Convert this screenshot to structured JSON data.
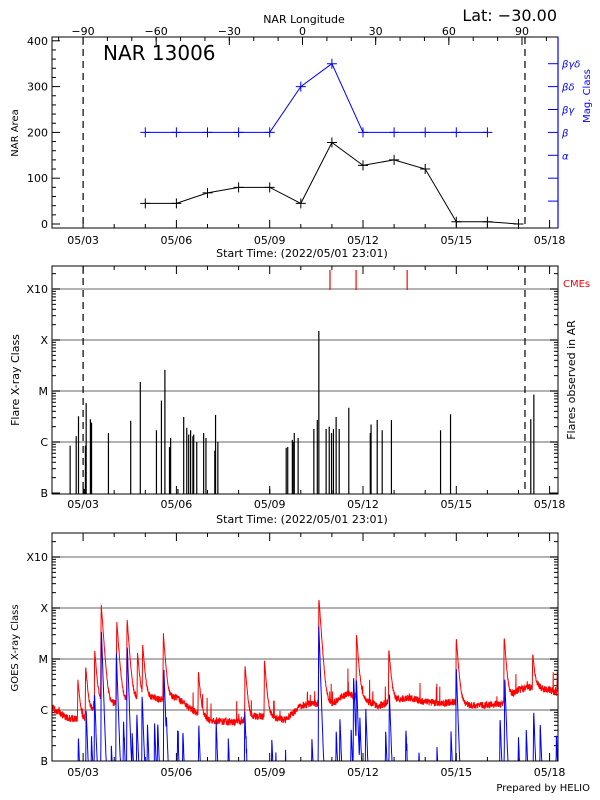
{
  "chart_data": [
    {
      "type": "line",
      "title": "NAR 13006",
      "annotation": "Lat: −30.00",
      "x2label": "NAR Longitude",
      "x2ticks": [
        "−90",
        "−60",
        "−30",
        "0",
        "30",
        "60",
        "90"
      ],
      "x2tick_values": [
        -90,
        -60,
        -30,
        0,
        30,
        60,
        90
      ],
      "xlabel": "Start Time: (2022/05/01 23:01)",
      "xticks": [
        "05/03",
        "05/06",
        "05/09",
        "05/12",
        "05/15",
        "05/18"
      ],
      "xlim": [
        "05/02 00:00",
        "05/18 06:00"
      ],
      "ylabel": "NAR Area",
      "ylim": [
        0,
        400
      ],
      "yticks": [
        "0",
        "100",
        "200",
        "300",
        "400"
      ],
      "y2label": "Mag. Class",
      "y2ticks": [
        "α",
        "β",
        "βγ",
        "βδ",
        "βγδ"
      ],
      "vlines": [
        "05/03 00:00",
        "05/17 05:00"
      ],
      "series": [
        {
          "key": "area",
          "color": "#000000",
          "x": [
            "05/05",
            "05/06",
            "05/07",
            "05/08",
            "05/09",
            "05/10",
            "05/11",
            "05/12",
            "05/13",
            "05/14",
            "05/15",
            "05/16",
            "05/17"
          ],
          "values": [
            45,
            45,
            68,
            80,
            80,
            45,
            178,
            128,
            140,
            120,
            5,
            5,
            0
          ]
        },
        {
          "key": "mag_class",
          "color": "#0000ff",
          "x": [
            "05/05",
            "05/06",
            "05/07",
            "05/08",
            "05/09",
            "05/10",
            "05/11",
            "05/12",
            "05/13",
            "05/14",
            "05/15",
            "05/16"
          ],
          "values": [
            "β",
            "β",
            "β",
            "β",
            "β",
            "βδ",
            "βγδ",
            "β",
            "β",
            "β",
            "β",
            "β"
          ]
        }
      ]
    },
    {
      "type": "bar",
      "xlabel": "Start Time: (2022/05/01 23:01)",
      "xticks": [
        "05/03",
        "05/06",
        "05/09",
        "05/12",
        "05/15",
        "05/18"
      ],
      "xlim": [
        "05/02 00:00",
        "05/18 06:00"
      ],
      "ylabel": "Flare X-ray Class",
      "y2label": "Flares observed in AR",
      "yscale": "log",
      "yticks": [
        "B",
        "C",
        "M",
        "X",
        "X10"
      ],
      "grid": true,
      "legend": "CMEs",
      "cme_color": "#ff0000",
      "cmes": [
        "05/10 22:31",
        "05/11 18:40",
        "05/13 10:04"
      ],
      "vlines": [
        "05/03 00:00",
        "05/17 05:00"
      ],
      "flares": [
        [
          "05/02 14:00",
          "B8.5"
        ],
        [
          "05/02 18:40",
          "C1.3"
        ],
        [
          "05/02 20:27",
          "C3.2"
        ],
        [
          "05/03 00:18",
          "B1.2"
        ],
        [
          "05/03 01:11",
          "B1.2"
        ],
        [
          "05/03 01:47",
          "B8.5"
        ],
        [
          "05/03 02:22",
          "C5.8"
        ],
        [
          "05/03 05:38",
          "C2.8"
        ],
        [
          "05/03 06:31",
          "C2.4"
        ],
        [
          "05/03 19:33",
          "C1.5"
        ],
        [
          "05/04 12:44",
          "C2.6"
        ],
        [
          "05/04 20:09",
          "M1.5"
        ],
        [
          "05/05 08:36",
          "C1.7"
        ],
        [
          "05/05 12:27",
          "C6.5"
        ],
        [
          "05/05 15:07",
          "M2.6"
        ],
        [
          "05/05 18:40",
          "B8.0"
        ],
        [
          "05/05 19:33",
          "C1.2"
        ],
        [
          "05/06 01:11",
          "B1.2"
        ],
        [
          "05/06 05:38",
          "C3.1"
        ],
        [
          "05/06 08:00",
          "C1.9"
        ],
        [
          "05/06 09:29",
          "C1.4"
        ],
        [
          "05/06 10:58",
          "C1.7"
        ],
        [
          "05/06 12:44",
          "C1.3"
        ],
        [
          "05/06 13:20",
          "C1.4"
        ],
        [
          "05/06 15:42",
          "C1.0"
        ],
        [
          "05/06 21:02",
          "C1.5"
        ],
        [
          "05/06 22:49",
          "C1.2"
        ],
        [
          "05/07 05:38",
          "B6.8"
        ],
        [
          "05/07 06:13",
          "C3.4"
        ],
        [
          "05/07 08:00",
          "C1.0"
        ],
        [
          "05/09 00:00",
          "B1.2"
        ],
        [
          "05/09 12:44",
          "B7.7"
        ],
        [
          "05/09 13:55",
          "B8.0"
        ],
        [
          "05/09 17:29",
          "C1.1"
        ],
        [
          "05/09 18:04",
          "C1.0"
        ],
        [
          "05/09 18:58",
          "C1.5"
        ],
        [
          "05/09 21:56",
          "C1.2"
        ],
        [
          "05/10 10:04",
          "C1.8"
        ],
        [
          "05/10 12:44",
          "C2.7"
        ],
        [
          "05/10 13:55",
          "X1.5"
        ],
        [
          "05/10 19:33",
          "C1.8"
        ],
        [
          "05/10 21:56",
          "C2.0"
        ],
        [
          "05/10 23:43",
          "C1.5"
        ],
        [
          "05/11 01:11",
          "C1.8"
        ],
        [
          "05/11 03:16",
          "C3.1"
        ],
        [
          "05/11 05:38",
          "C1.8"
        ],
        [
          "05/11 13:02",
          "C4.7"
        ],
        [
          "05/12 05:38",
          "C1.5"
        ],
        [
          "05/12 06:13",
          "C2.2"
        ],
        [
          "05/12 10:58",
          "C2.7"
        ],
        [
          "05/12 14:49",
          "C1.7"
        ],
        [
          "05/12 21:56",
          "C2.7"
        ],
        [
          "05/14 11:51",
          "C1.7"
        ],
        [
          "05/14 19:33",
          "C3.5"
        ],
        [
          "05/17 09:29",
          "C2.8"
        ],
        [
          "05/17 11:51",
          "C8.5"
        ]
      ]
    },
    {
      "type": "line",
      "xticks": [
        "05/03",
        "05/06",
        "05/09",
        "05/12",
        "05/15",
        "05/18"
      ],
      "xlim": [
        "05/02 00:00",
        "05/18 06:00"
      ],
      "ylabel": "GOES X-ray Class",
      "yscale": "log",
      "yticks": [
        "B",
        "C",
        "M",
        "X",
        "X10"
      ],
      "grid": true,
      "long_channel": {
        "color": "#ff0000",
        "background": [
          [
            "05/02 00:00",
            "C1.1"
          ],
          [
            "05/02 12:00",
            "B6.9"
          ],
          [
            "05/03 00:00",
            "B6.4"
          ],
          [
            "05/03 12:00",
            "C1.35"
          ],
          [
            "05/04 00:00",
            "C1.35"
          ],
          [
            "05/04 12:00",
            "C1.6"
          ],
          [
            "05/05 00:00",
            "C1.8"
          ],
          [
            "05/05 12:00",
            "C1.6"
          ],
          [
            "05/06 00:00",
            "C1.8"
          ],
          [
            "05/06 12:00",
            "C1.0"
          ],
          [
            "05/07 00:00",
            "B6.4"
          ],
          [
            "05/07 12:00",
            "B5.9"
          ],
          [
            "05/08 00:00",
            "B5.9"
          ],
          [
            "05/08 12:00",
            "B7.4"
          ],
          [
            "05/09 00:00",
            "B7.4"
          ],
          [
            "05/09 12:00",
            "B6.4"
          ],
          [
            "05/10 00:00",
            "C1.2"
          ],
          [
            "05/10 12:00",
            "C1.35"
          ],
          [
            "05/11 00:00",
            "C1.35"
          ],
          [
            "05/11 12:00",
            "C2.1"
          ],
          [
            "05/12 00:00",
            "C1.6"
          ],
          [
            "05/12 12:00",
            "C1.2"
          ],
          [
            "05/13 00:00",
            "C1.6"
          ],
          [
            "05/13 12:00",
            "C1.7"
          ],
          [
            "05/14 00:00",
            "C1.45"
          ],
          [
            "05/14 12:00",
            "C1.35"
          ],
          [
            "05/15 00:00",
            "C1.45"
          ],
          [
            "05/15 12:00",
            "C1.2"
          ],
          [
            "05/16 00:00",
            "C1.25"
          ],
          [
            "05/16 12:00",
            "C1.35"
          ],
          [
            "05/17 00:00",
            "C2.5"
          ],
          [
            "05/17 12:00",
            "C2.85"
          ],
          [
            "05/18 00:00",
            "C2.5"
          ],
          [
            "05/18 06:00",
            "C2.1"
          ]
        ],
        "peaks": [
          [
            "05/02 20:00",
            "C3.2"
          ],
          [
            "05/03 02:00",
            "C6.4"
          ],
          [
            "05/03 09:00",
            "M1.35"
          ],
          [
            "05/03 14:00",
            "X1.15"
          ],
          [
            "05/04 02:00",
            "M5.3"
          ],
          [
            "05/04 10:00",
            "M5.8"
          ],
          [
            "05/04 18:00",
            "M1.2"
          ],
          [
            "05/04 22:00",
            "M1.7"
          ],
          [
            "05/05 14:00",
            "M2.8"
          ],
          [
            "05/06 17:00",
            "C4.9"
          ],
          [
            "05/08 05:00",
            "C6.8"
          ],
          [
            "05/08 20:00",
            "C8.5"
          ],
          [
            "05/10 14:00",
            "X1.5"
          ],
          [
            "05/11 19:00",
            "M2.8"
          ],
          [
            "05/12 20:00",
            "M1.4"
          ],
          [
            "05/15 00:00",
            "M2.4"
          ],
          [
            "05/16 13:00",
            "M2.5"
          ],
          [
            "05/17 11:00",
            "M1.0"
          ],
          [
            "05/18 06:00",
            "C3.7"
          ]
        ]
      },
      "short_channel": {
        "color": "#0000ff",
        "peaks": [
          [
            "05/02 20:24",
            "B2.7"
          ],
          [
            "05/03 02:24",
            "C1.0"
          ],
          [
            "05/03 06:29",
            "B3.1"
          ],
          [
            "05/03 08:53",
            "C2.1"
          ],
          [
            "05/03 14:10",
            "M3.4"
          ],
          [
            "05/03 21:50",
            "B1.9"
          ],
          [
            "05/04 01:41",
            "M1.3"
          ],
          [
            "05/04 07:12",
            "B6.0"
          ],
          [
            "05/04 10:05",
            "M1.8"
          ],
          [
            "05/04 13:55",
            "B3.0"
          ],
          [
            "05/04 17:31",
            "B7.9"
          ],
          [
            "05/04 21:36",
            "C1.9"
          ],
          [
            "05/05 01:41",
            "B5.3"
          ],
          [
            "05/05 07:12",
            "B5.2"
          ],
          [
            "05/05 09:36",
            "B5.3"
          ],
          [
            "05/05 14:24",
            "C6.1"
          ],
          [
            "05/05 16:19",
            "B4.6"
          ],
          [
            "05/06 00:58",
            "B4.1"
          ],
          [
            "05/06 05:02",
            "B3.6"
          ],
          [
            "05/06 17:17",
            "B5.1"
          ],
          [
            "05/07 06:43",
            "B5.5"
          ],
          [
            "05/07 16:05",
            "B2.6"
          ],
          [
            "05/08 04:48",
            "B9.6"
          ],
          [
            "05/09 01:41",
            "B2.5"
          ],
          [
            "05/10 08:38",
            "B2.6"
          ],
          [
            "05/10 13:55",
            "M4.4"
          ],
          [
            "05/11 03:22",
            "B3.8"
          ],
          [
            "05/11 06:14",
            "B6.6"
          ],
          [
            "05/11 14:53",
            "B4.2"
          ],
          [
            "05/11 16:48",
            "C4.5"
          ],
          [
            "05/11 18:58",
            "C3.9"
          ],
          [
            "05/11 21:36",
            "B6.4"
          ],
          [
            "05/12 02:10",
            "C1.1"
          ],
          [
            "05/12 17:31",
            "B3.8"
          ],
          [
            "05/12 20:24",
            "C2.1"
          ],
          [
            "05/13 09:07",
            "B4.0"
          ],
          [
            "05/13 19:12",
            "B1.4"
          ],
          [
            "05/14 09:07",
            "B1.8"
          ],
          [
            "05/14 19:55",
            "B3.8"
          ],
          [
            "05/15 00:00",
            "C6.8"
          ],
          [
            "05/16 09:50",
            "B6.8"
          ],
          [
            "05/16 13:26",
            "C4.3"
          ],
          [
            "05/17 00:00",
            "B2.7"
          ],
          [
            "05/17 06:00",
            "B4.2"
          ],
          [
            "05/17 11:46",
            "B9.3"
          ],
          [
            "05/17 16:48",
            "B5.2"
          ],
          [
            "05/18 05:17",
            "B3.1"
          ]
        ]
      },
      "footer": "Prepared by HELIO"
    }
  ]
}
